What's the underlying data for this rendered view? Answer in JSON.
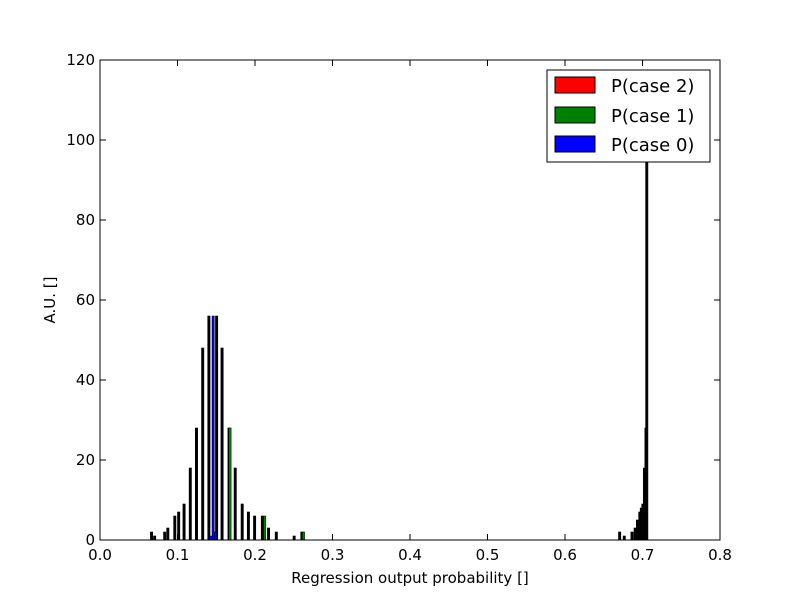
{
  "chart_data": {
    "type": "bar",
    "title": "",
    "xlabel": "Regression output probability []",
    "ylabel": "A.U. []",
    "xlim": [
      0.0,
      0.8
    ],
    "ylim": [
      0,
      120
    ],
    "xticks": [
      0.0,
      0.1,
      0.2,
      0.3,
      0.4,
      0.5,
      0.6,
      0.7,
      0.8
    ],
    "xtick_labels": [
      "0.0",
      "0.1",
      "0.2",
      "0.3",
      "0.4",
      "0.5",
      "0.6",
      "0.7",
      "0.8"
    ],
    "yticks": [
      0,
      20,
      40,
      60,
      80,
      100,
      120
    ],
    "ytick_labels": [
      "0",
      "20",
      "40",
      "60",
      "80",
      "100",
      "120"
    ],
    "grid": false,
    "legend_position": "top-right",
    "bin_width": 0.003,
    "series": [
      {
        "name": "P(case 0)",
        "color": "#0000ff",
        "points": [
          [
            0.146,
            56
          ],
          [
            0.143,
            1
          ],
          [
            0.149,
            2
          ]
        ]
      },
      {
        "name": "P(case 1)",
        "color": "#008000",
        "points": [
          [
            0.1677,
            28
          ],
          [
            0.2125,
            6
          ],
          [
            0.2625,
            2
          ]
        ]
      },
      {
        "name": "P(case 2)",
        "color": "#ff0000",
        "points": []
      },
      {
        "name": "",
        "color": "#000000",
        "points": [
          [
            0.0665,
            2
          ],
          [
            0.0705,
            1
          ],
          [
            0.0835,
            2
          ],
          [
            0.0875,
            3
          ],
          [
            0.0965,
            6
          ],
          [
            0.1015,
            7
          ],
          [
            0.1085,
            9
          ],
          [
            0.1165,
            18
          ],
          [
            0.1245,
            28
          ],
          [
            0.1325,
            48
          ],
          [
            0.1405,
            56
          ],
          [
            0.1505,
            56
          ],
          [
            0.1575,
            48
          ],
          [
            0.1665,
            28
          ],
          [
            0.1745,
            18
          ],
          [
            0.1835,
            9
          ],
          [
            0.1915,
            7
          ],
          [
            0.1995,
            6
          ],
          [
            0.2095,
            6
          ],
          [
            0.2175,
            3
          ],
          [
            0.2275,
            2
          ],
          [
            0.2505,
            1
          ],
          [
            0.2605,
            2
          ],
          [
            0.6705,
            2
          ],
          [
            0.6765,
            1
          ],
          [
            0.6865,
            2
          ],
          [
            0.6905,
            3
          ],
          [
            0.6935,
            5
          ],
          [
            0.6965,
            7
          ],
          [
            0.6985,
            8
          ],
          [
            0.7005,
            9
          ],
          [
            0.7025,
            18
          ],
          [
            0.7045,
            28
          ],
          [
            0.7055,
            100
          ]
        ]
      }
    ],
    "legend": [
      {
        "label": "P(case 2)",
        "color": "#ff0000"
      },
      {
        "label": "P(case 1)",
        "color": "#008000"
      },
      {
        "label": "P(case 0)",
        "color": "#0000ff"
      }
    ]
  }
}
